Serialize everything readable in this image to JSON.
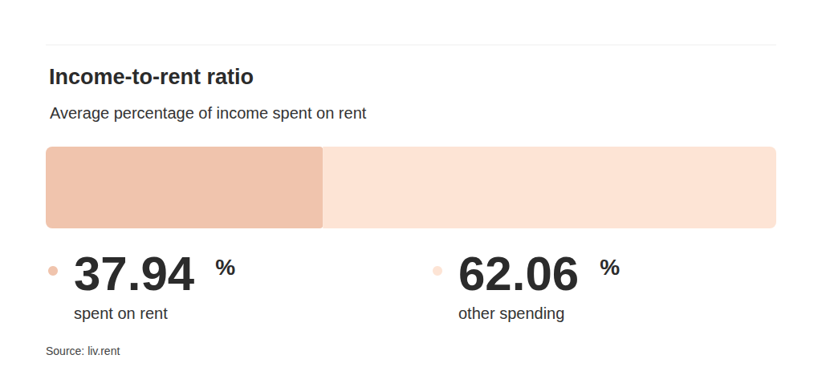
{
  "chart_data": {
    "type": "bar",
    "orientation": "horizontal",
    "stacked": true,
    "title": "Income-to-rent ratio",
    "subtitle": "Average percentage of income spent on rent",
    "categories": [
      null
    ],
    "series": [
      {
        "name": "spent on rent",
        "color": "#f0c4ad",
        "values": [
          37.94
        ],
        "value_labels": [
          "37.94 %"
        ]
      },
      {
        "name": "other spending",
        "color": "#fde4d5",
        "values": [
          62.06
        ],
        "value_labels": [
          "62.06 %"
        ]
      }
    ],
    "xlim": [
      0,
      100
    ],
    "tick_labels": false,
    "data_labels": true,
    "grid": false,
    "source": "Source: liv.rent"
  }
}
